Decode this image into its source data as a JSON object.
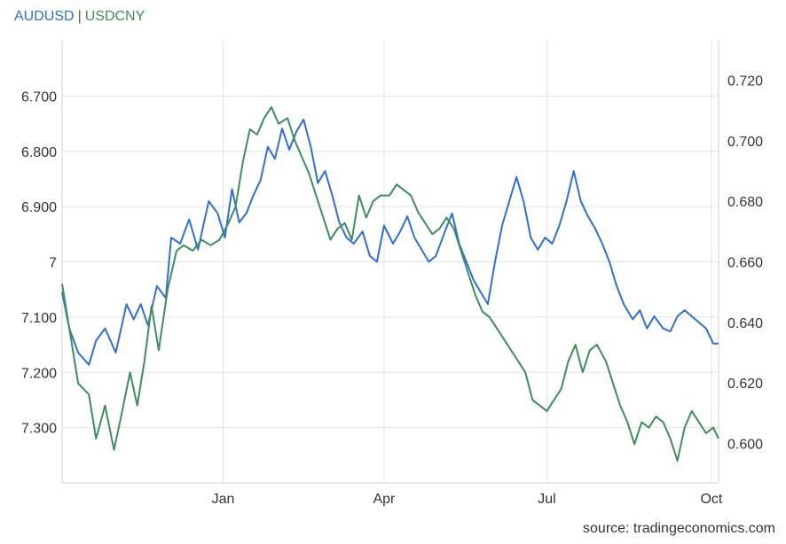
{
  "legend": {
    "series1": "AUDUSD",
    "separator": "|",
    "series2": "USDCNY"
  },
  "source": "source: tradingeconomics.com",
  "colors": {
    "audusd": "#2f6fd6",
    "usdcny": "#3d8f5a",
    "grid": "#e3e3e3"
  },
  "chart_data": {
    "type": "line",
    "title": "",
    "x_ticks": [
      "Jan",
      "Apr",
      "Jul",
      "Oct"
    ],
    "left_axis": {
      "series": "USDCNY",
      "inverted": true,
      "range": [
        7.4,
        6.6
      ],
      "ticks": [
        "6.700",
        "6.800",
        "6.900",
        "7",
        "7.100",
        "7.200",
        "7.300"
      ],
      "tick_values": [
        6.7,
        6.8,
        6.9,
        7.0,
        7.1,
        7.2,
        7.3
      ]
    },
    "right_axis": {
      "series": "AUDUSD",
      "range": [
        0.587,
        0.733
      ],
      "ticks": [
        "0.720",
        "0.700",
        "0.680",
        "0.660",
        "0.640",
        "0.620",
        "0.600"
      ],
      "tick_values": [
        0.72,
        0.7,
        0.68,
        0.66,
        0.64,
        0.62,
        0.6
      ]
    },
    "x_range": [
      "2022-10-03",
      "2023-10-05"
    ],
    "grid": true,
    "series": [
      {
        "name": "AUDUSD",
        "axis": "right",
        "points": [
          [
            "2022-10-03",
            0.65
          ],
          [
            "2022-10-07",
            0.638
          ],
          [
            "2022-10-12",
            0.63
          ],
          [
            "2022-10-18",
            0.626
          ],
          [
            "2022-10-22",
            0.634
          ],
          [
            "2022-10-27",
            0.638
          ],
          [
            "2022-11-02",
            0.63
          ],
          [
            "2022-11-08",
            0.646
          ],
          [
            "2022-11-12",
            0.641
          ],
          [
            "2022-11-16",
            0.646
          ],
          [
            "2022-11-20",
            0.639
          ],
          [
            "2022-11-25",
            0.652
          ],
          [
            "2022-11-30",
            0.648
          ],
          [
            "2022-12-03",
            0.668
          ],
          [
            "2022-12-08",
            0.666
          ],
          [
            "2022-12-13",
            0.674
          ],
          [
            "2022-12-18",
            0.664
          ],
          [
            "2022-12-24",
            0.68
          ],
          [
            "2022-12-29",
            0.676
          ],
          [
            "2023-01-02",
            0.668
          ],
          [
            "2023-01-06",
            0.684
          ],
          [
            "2023-01-10",
            0.673
          ],
          [
            "2023-01-14",
            0.676
          ],
          [
            "2023-01-18",
            0.682
          ],
          [
            "2023-01-22",
            0.687
          ],
          [
            "2023-01-26",
            0.698
          ],
          [
            "2023-01-30",
            0.694
          ],
          [
            "2023-02-03",
            0.704
          ],
          [
            "2023-02-07",
            0.697
          ],
          [
            "2023-02-11",
            0.703
          ],
          [
            "2023-02-15",
            0.707
          ],
          [
            "2023-02-19",
            0.698
          ],
          [
            "2023-02-23",
            0.686
          ],
          [
            "2023-02-27",
            0.69
          ],
          [
            "2023-03-03",
            0.682
          ],
          [
            "2023-03-07",
            0.673
          ],
          [
            "2023-03-11",
            0.668
          ],
          [
            "2023-03-15",
            0.666
          ],
          [
            "2023-03-20",
            0.67
          ],
          [
            "2023-03-24",
            0.662
          ],
          [
            "2023-03-28",
            0.66
          ],
          [
            "2023-04-01",
            0.672
          ],
          [
            "2023-04-06",
            0.666
          ],
          [
            "2023-04-10",
            0.67
          ],
          [
            "2023-04-14",
            0.675
          ],
          [
            "2023-04-18",
            0.668
          ],
          [
            "2023-04-22",
            0.664
          ],
          [
            "2023-04-26",
            0.66
          ],
          [
            "2023-04-30",
            0.662
          ],
          [
            "2023-05-05",
            0.67
          ],
          [
            "2023-05-09",
            0.676
          ],
          [
            "2023-05-13",
            0.666
          ],
          [
            "2023-05-17",
            0.66
          ],
          [
            "2023-05-21",
            0.654
          ],
          [
            "2023-05-25",
            0.65
          ],
          [
            "2023-05-29",
            0.646
          ],
          [
            "2023-06-02",
            0.66
          ],
          [
            "2023-06-06",
            0.672
          ],
          [
            "2023-06-10",
            0.68
          ],
          [
            "2023-06-14",
            0.688
          ],
          [
            "2023-06-18",
            0.68
          ],
          [
            "2023-06-22",
            0.668
          ],
          [
            "2023-06-26",
            0.664
          ],
          [
            "2023-06-30",
            0.668
          ],
          [
            "2023-07-04",
            0.666
          ],
          [
            "2023-07-08",
            0.672
          ],
          [
            "2023-07-12",
            0.68
          ],
          [
            "2023-07-16",
            0.69
          ],
          [
            "2023-07-20",
            0.68
          ],
          [
            "2023-07-24",
            0.675
          ],
          [
            "2023-07-28",
            0.671
          ],
          [
            "2023-08-01",
            0.666
          ],
          [
            "2023-08-05",
            0.66
          ],
          [
            "2023-08-09",
            0.652
          ],
          [
            "2023-08-13",
            0.646
          ],
          [
            "2023-08-18",
            0.641
          ],
          [
            "2023-08-22",
            0.644
          ],
          [
            "2023-08-26",
            0.638
          ],
          [
            "2023-08-30",
            0.642
          ],
          [
            "2023-09-04",
            0.638
          ],
          [
            "2023-09-08",
            0.637
          ],
          [
            "2023-09-12",
            0.642
          ],
          [
            "2023-09-16",
            0.644
          ],
          [
            "2023-09-20",
            0.642
          ],
          [
            "2023-09-24",
            0.64
          ],
          [
            "2023-09-28",
            0.638
          ],
          [
            "2023-10-02",
            0.633
          ],
          [
            "2023-10-05",
            0.633
          ]
        ]
      },
      {
        "name": "USDCNY",
        "axis": "left",
        "points": [
          [
            "2022-10-03",
            7.04
          ],
          [
            "2022-10-07",
            7.12
          ],
          [
            "2022-10-12",
            7.22
          ],
          [
            "2022-10-18",
            7.24
          ],
          [
            "2022-10-22",
            7.32
          ],
          [
            "2022-10-27",
            7.26
          ],
          [
            "2022-11-01",
            7.34
          ],
          [
            "2022-11-05",
            7.28
          ],
          [
            "2022-11-10",
            7.2
          ],
          [
            "2022-11-14",
            7.26
          ],
          [
            "2022-11-18",
            7.18
          ],
          [
            "2022-11-22",
            7.08
          ],
          [
            "2022-11-26",
            7.16
          ],
          [
            "2022-12-01",
            7.05
          ],
          [
            "2022-12-06",
            6.98
          ],
          [
            "2022-12-10",
            6.97
          ],
          [
            "2022-12-15",
            6.98
          ],
          [
            "2022-12-20",
            6.96
          ],
          [
            "2022-12-25",
            6.97
          ],
          [
            "2022-12-30",
            6.96
          ],
          [
            "2023-01-04",
            6.93
          ],
          [
            "2023-01-08",
            6.9
          ],
          [
            "2023-01-12",
            6.82
          ],
          [
            "2023-01-16",
            6.76
          ],
          [
            "2023-01-20",
            6.77
          ],
          [
            "2023-01-24",
            6.74
          ],
          [
            "2023-01-28",
            6.72
          ],
          [
            "2023-02-01",
            6.75
          ],
          [
            "2023-02-06",
            6.74
          ],
          [
            "2023-02-10",
            6.78
          ],
          [
            "2023-02-14",
            6.81
          ],
          [
            "2023-02-18",
            6.84
          ],
          [
            "2023-02-22",
            6.88
          ],
          [
            "2023-02-26",
            6.92
          ],
          [
            "2023-03-02",
            6.96
          ],
          [
            "2023-03-06",
            6.94
          ],
          [
            "2023-03-10",
            6.93
          ],
          [
            "2023-03-14",
            6.96
          ],
          [
            "2023-03-18",
            6.88
          ],
          [
            "2023-03-22",
            6.92
          ],
          [
            "2023-03-26",
            6.89
          ],
          [
            "2023-03-30",
            6.88
          ],
          [
            "2023-04-04",
            6.88
          ],
          [
            "2023-04-08",
            6.86
          ],
          [
            "2023-04-12",
            6.87
          ],
          [
            "2023-04-16",
            6.88
          ],
          [
            "2023-04-20",
            6.91
          ],
          [
            "2023-04-24",
            6.93
          ],
          [
            "2023-04-28",
            6.95
          ],
          [
            "2023-05-02",
            6.94
          ],
          [
            "2023-05-06",
            6.92
          ],
          [
            "2023-05-10",
            6.94
          ],
          [
            "2023-05-14",
            6.98
          ],
          [
            "2023-05-18",
            7.02
          ],
          [
            "2023-05-22",
            7.06
          ],
          [
            "2023-05-26",
            7.09
          ],
          [
            "2023-05-30",
            7.1
          ],
          [
            "2023-06-03",
            7.12
          ],
          [
            "2023-06-07",
            7.14
          ],
          [
            "2023-06-11",
            7.16
          ],
          [
            "2023-06-15",
            7.18
          ],
          [
            "2023-06-19",
            7.2
          ],
          [
            "2023-06-23",
            7.25
          ],
          [
            "2023-06-27",
            7.26
          ],
          [
            "2023-07-01",
            7.27
          ],
          [
            "2023-07-05",
            7.25
          ],
          [
            "2023-07-09",
            7.23
          ],
          [
            "2023-07-13",
            7.18
          ],
          [
            "2023-07-17",
            7.15
          ],
          [
            "2023-07-21",
            7.2
          ],
          [
            "2023-07-25",
            7.16
          ],
          [
            "2023-07-29",
            7.15
          ],
          [
            "2023-08-03",
            7.18
          ],
          [
            "2023-08-07",
            7.22
          ],
          [
            "2023-08-11",
            7.26
          ],
          [
            "2023-08-15",
            7.29
          ],
          [
            "2023-08-19",
            7.33
          ],
          [
            "2023-08-23",
            7.29
          ],
          [
            "2023-08-27",
            7.3
          ],
          [
            "2023-08-31",
            7.28
          ],
          [
            "2023-09-04",
            7.29
          ],
          [
            "2023-09-08",
            7.32
          ],
          [
            "2023-09-12",
            7.36
          ],
          [
            "2023-09-16",
            7.3
          ],
          [
            "2023-09-20",
            7.27
          ],
          [
            "2023-09-24",
            7.29
          ],
          [
            "2023-09-28",
            7.31
          ],
          [
            "2023-10-02",
            7.3
          ],
          [
            "2023-10-05",
            7.32
          ]
        ]
      }
    ]
  }
}
